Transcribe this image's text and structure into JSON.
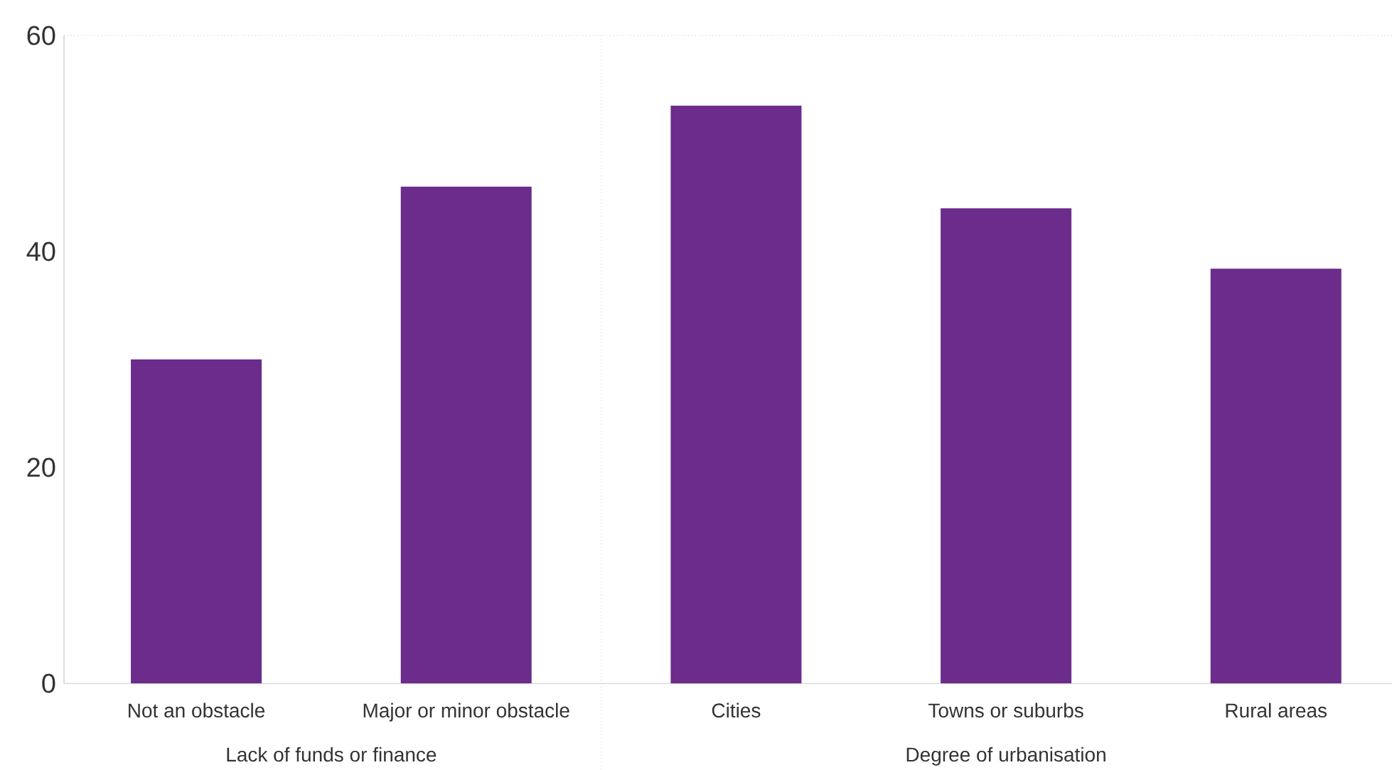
{
  "chart_data": {
    "type": "bar",
    "categories": [
      "Not an obstacle",
      "Major or minor obstacle",
      "Cities",
      "Towns or suburbs",
      "Rural areas"
    ],
    "values": [
      30,
      46,
      53.5,
      44,
      38.4
    ],
    "color": "#6b2c8c",
    "ylim": [
      0,
      60
    ],
    "yticks": [
      0,
      20,
      40,
      60
    ],
    "annotations": [
      "Lack of funds or finance",
      "Degree of urbanisation"
    ]
  }
}
